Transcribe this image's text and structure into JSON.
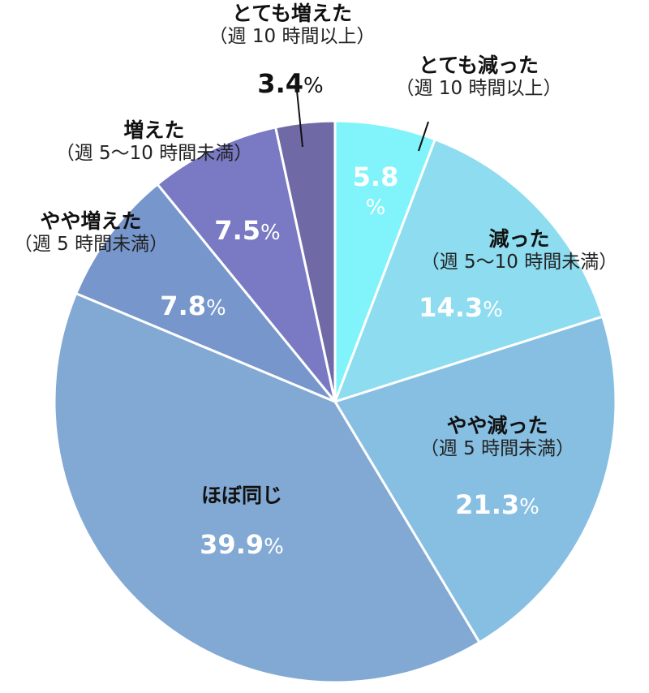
{
  "chart_data": {
    "type": "pie",
    "start": "top",
    "direction": "clockwise",
    "slices": [
      {
        "name": "とても減った",
        "sub": "（週 10 時間以上）",
        "value": 5.8,
        "label": "5.8",
        "unit": "%",
        "color": "#80f4fa"
      },
      {
        "name": "減った",
        "sub": "（週 5～10 時間未満）",
        "value": 14.3,
        "label": "14.3",
        "unit": "%",
        "color": "#8ddcef"
      },
      {
        "name": "やや減った",
        "sub": "（週 5 時間未満）",
        "value": 21.3,
        "label": "21.3",
        "unit": "%",
        "color": "#87bfe3"
      },
      {
        "name": "ほぼ同じ",
        "sub": "",
        "value": 39.9,
        "label": "39.9",
        "unit": "%",
        "color": "#82a9d3"
      },
      {
        "name": "やや増えた",
        "sub": "（週 5 時間未満）",
        "value": 7.8,
        "label": "7.8",
        "unit": "%",
        "color": "#7696cc"
      },
      {
        "name": "増えた",
        "sub": "（週 5～10 時間未満）",
        "value": 7.5,
        "label": "7.5",
        "unit": "%",
        "color": "#7979c4"
      },
      {
        "name": "とても増えた",
        "sub": "（週 10 時間以上）",
        "value": 3.4,
        "label": "3.4",
        "unit": "%",
        "color": "#6f6aa6"
      }
    ]
  }
}
